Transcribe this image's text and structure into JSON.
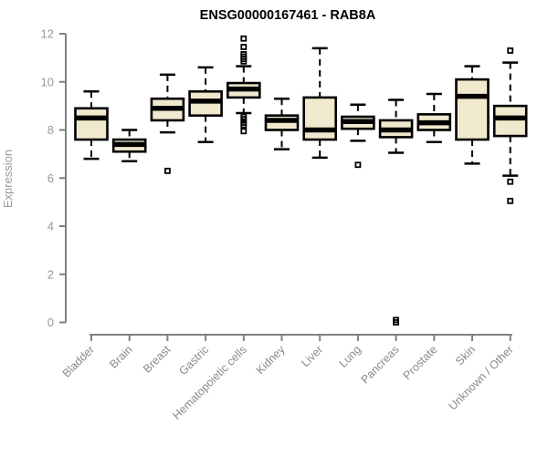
{
  "header": {
    "title": "ENSG00000167461 - RAB8A"
  },
  "colors": {
    "box_fill": "#F0E9CE",
    "box_border": "#000000",
    "median_line": "#000000",
    "whisker": "#000000",
    "outlier": "#000000",
    "axis": "#808080",
    "tick_label": "#999999",
    "title_text": "#000000",
    "background": "#ffffff"
  },
  "chart_data": {
    "type": "boxplot",
    "title": "ENSG00000167461 - RAB8A",
    "xlabel": "",
    "ylabel": "Expression",
    "ylim": [
      0,
      12
    ],
    "yticks": [
      0,
      2,
      4,
      6,
      8,
      10,
      12
    ],
    "grid": false,
    "legend": "none",
    "whisker_style": "dashed",
    "outlier_marker": "open-square",
    "categories": [
      "Bladder",
      "Brain",
      "Breast",
      "Gastric",
      "Hematopoietic cells",
      "Kidney",
      "Liver",
      "Lung",
      "Pancreas",
      "Prostate",
      "Skin",
      "Unknown / Other"
    ],
    "boxes": [
      {
        "category": "Bladder",
        "whisker_low": 6.8,
        "q1": 7.6,
        "median": 8.5,
        "q3": 8.9,
        "whisker_high": 9.6,
        "outliers": []
      },
      {
        "category": "Brain",
        "whisker_low": 6.7,
        "q1": 7.1,
        "median": 7.4,
        "q3": 7.6,
        "whisker_high": 8.0,
        "outliers": []
      },
      {
        "category": "Breast",
        "whisker_low": 7.9,
        "q1": 8.4,
        "median": 8.9,
        "q3": 9.3,
        "whisker_high": 10.3,
        "outliers": [
          6.3
        ]
      },
      {
        "category": "Gastric",
        "whisker_low": 7.5,
        "q1": 8.6,
        "median": 9.2,
        "q3": 9.6,
        "whisker_high": 10.6,
        "outliers": []
      },
      {
        "category": "Hematopoietic cells",
        "whisker_low": 8.7,
        "q1": 9.35,
        "median": 9.7,
        "q3": 9.95,
        "whisker_high": 10.65,
        "outliers": [
          11.8,
          11.45,
          11.15,
          11.05,
          10.95,
          10.85,
          8.55,
          8.45,
          8.3,
          8.2,
          7.95
        ]
      },
      {
        "category": "Kidney",
        "whisker_low": 7.2,
        "q1": 8.0,
        "median": 8.4,
        "q3": 8.6,
        "whisker_high": 9.3,
        "outliers": []
      },
      {
        "category": "Liver",
        "whisker_low": 6.85,
        "q1": 7.6,
        "median": 8.0,
        "q3": 9.35,
        "whisker_high": 11.4,
        "outliers": []
      },
      {
        "category": "Lung",
        "whisker_low": 7.55,
        "q1": 8.05,
        "median": 8.35,
        "q3": 8.55,
        "whisker_high": 9.05,
        "outliers": [
          6.55
        ]
      },
      {
        "category": "Pancreas",
        "whisker_low": 7.05,
        "q1": 7.7,
        "median": 8.0,
        "q3": 8.4,
        "whisker_high": 9.25,
        "outliers": [
          0.1,
          0
        ]
      },
      {
        "category": "Prostate",
        "whisker_low": 7.5,
        "q1": 8.0,
        "median": 8.3,
        "q3": 8.65,
        "whisker_high": 9.5,
        "outliers": []
      },
      {
        "category": "Skin",
        "whisker_low": 6.6,
        "q1": 7.6,
        "median": 9.4,
        "q3": 10.1,
        "whisker_high": 10.65,
        "outliers": []
      },
      {
        "category": "Unknown / Other",
        "whisker_low": 6.1,
        "q1": 7.75,
        "median": 8.5,
        "q3": 9.0,
        "whisker_high": 10.8,
        "outliers": [
          11.3,
          5.85,
          5.05
        ]
      }
    ]
  }
}
